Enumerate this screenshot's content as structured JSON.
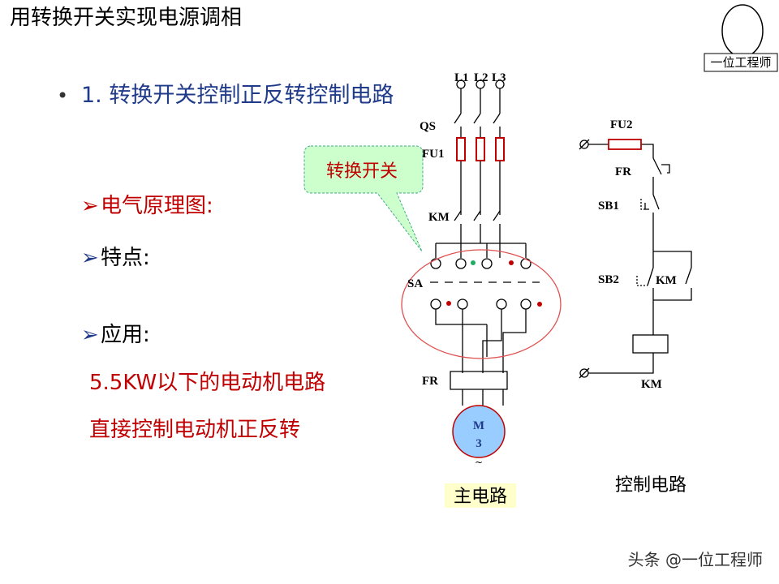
{
  "header": {
    "title": "用转换开关实现电源调相",
    "logo": "一位工程师"
  },
  "bullet": "1. 转换开关控制正反转控制电路",
  "points": [
    "电气原理图:",
    "特点:",
    "应用:"
  ],
  "application": [
    "5.5KW以下的电动机电路",
    "直接控制电动机正反转"
  ],
  "callout": "转换开关",
  "main_circuit": {
    "labels": {
      "l1": "L1",
      "l2": "L2",
      "l3": "L3",
      "qs": "QS",
      "fu1": "FU1",
      "km": "KM",
      "sa": "SA",
      "fr": "FR",
      "motor_m": "M",
      "motor_3": "3",
      "motor_ac": "~"
    },
    "caption": "主电路"
  },
  "control_circuit": {
    "labels": {
      "fu2": "FU2",
      "fr": "FR",
      "sb1": "SB1",
      "sb2": "SB2",
      "km_contact": "KM",
      "km_coil": "KM"
    },
    "caption": "控制电路"
  },
  "watermark": "头条 @一位工程师"
}
